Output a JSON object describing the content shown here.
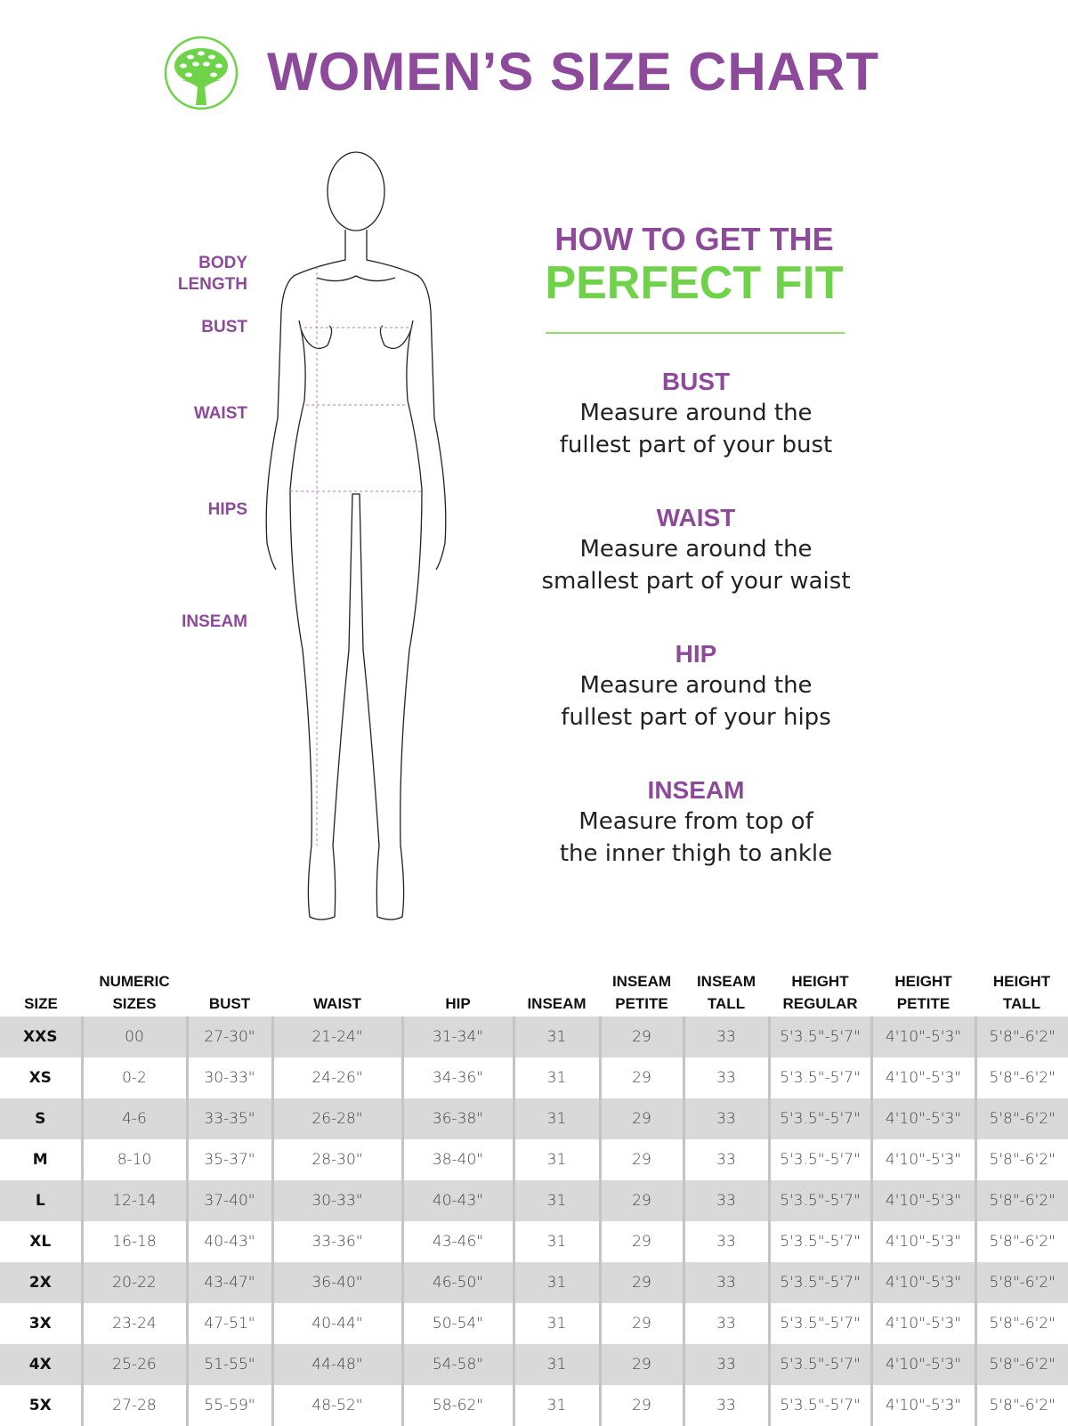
{
  "header": {
    "title": "WOMEN’S SIZE CHART",
    "logo_icon": "tree-icon",
    "logo_color": "#6fd34a",
    "title_color": "#8e4a9a"
  },
  "figure_labels": [
    "BODY LENGTH",
    "BUST",
    "WAIST",
    "HIPS",
    "INSEAM"
  ],
  "howto": {
    "line1": "HOW TO GET THE",
    "line2": "PERFECT FIT",
    "tips": [
      {
        "title": "BUST",
        "line1": "Measure around the",
        "line2": "fullest part of your bust"
      },
      {
        "title": "WAIST",
        "line1": "Measure around the",
        "line2": "smallest part of your waist"
      },
      {
        "title": "HIP",
        "line1": "Measure around the",
        "line2": "fullest part of your hips"
      },
      {
        "title": "INSEAM",
        "line1": "Measure from top of",
        "line2": "the inner thigh to ankle"
      }
    ]
  },
  "table": {
    "headers": [
      [
        "SIZE",
        ""
      ],
      [
        "NUMERIC",
        "SIZES"
      ],
      [
        "BUST",
        ""
      ],
      [
        "WAIST",
        ""
      ],
      [
        "HIP",
        ""
      ],
      [
        "INSEAM",
        ""
      ],
      [
        "INSEAM",
        "PETITE"
      ],
      [
        "INSEAM",
        "TALL"
      ],
      [
        "HEIGHT",
        "REGULAR"
      ],
      [
        "HEIGHT",
        "PETITE"
      ],
      [
        "HEIGHT",
        "TALL"
      ]
    ],
    "rows": [
      [
        "XXS",
        "00",
        "27-30\"",
        "21-24\"",
        "31-34\"",
        "31",
        "29",
        "33",
        "5'3.5\"-5'7\"",
        "4'10\"-5'3\"",
        "5'8\"-6'2\""
      ],
      [
        "XS",
        "0-2",
        "30-33\"",
        "24-26\"",
        "34-36\"",
        "31",
        "29",
        "33",
        "5'3.5\"-5'7\"",
        "4'10\"-5'3\"",
        "5'8\"-6'2\""
      ],
      [
        "S",
        "4-6",
        "33-35\"",
        "26-28\"",
        "36-38\"",
        "31",
        "29",
        "33",
        "5'3.5\"-5'7\"",
        "4'10\"-5'3\"",
        "5'8\"-6'2\""
      ],
      [
        "M",
        "8-10",
        "35-37\"",
        "28-30\"",
        "38-40\"",
        "31",
        "29",
        "33",
        "5'3.5\"-5'7\"",
        "4'10\"-5'3\"",
        "5'8\"-6'2\""
      ],
      [
        "L",
        "12-14",
        "37-40\"",
        "30-33\"",
        "40-43\"",
        "31",
        "29",
        "33",
        "5'3.5\"-5'7\"",
        "4'10\"-5'3\"",
        "5'8\"-6'2\""
      ],
      [
        "XL",
        "16-18",
        "40-43\"",
        "33-36\"",
        "43-46\"",
        "31",
        "29",
        "33",
        "5'3.5\"-5'7\"",
        "4'10\"-5'3\"",
        "5'8\"-6'2\""
      ],
      [
        "2X",
        "20-22",
        "43-47\"",
        "36-40\"",
        "46-50\"",
        "31",
        "29",
        "33",
        "5'3.5\"-5'7\"",
        "4'10\"-5'3\"",
        "5'8\"-6'2\""
      ],
      [
        "3X",
        "23-24",
        "47-51\"",
        "40-44\"",
        "50-54\"",
        "31",
        "29",
        "33",
        "5'3.5\"-5'7\"",
        "4'10\"-5'3\"",
        "5'8\"-6'2\""
      ],
      [
        "4X",
        "25-26",
        "51-55\"",
        "44-48\"",
        "54-58\"",
        "31",
        "29",
        "33",
        "5'3.5\"-5'7\"",
        "4'10\"-5'3\"",
        "5'8\"-6'2\""
      ],
      [
        "5X",
        "27-28",
        "55-59\"",
        "48-52\"",
        "58-62\"",
        "31",
        "29",
        "33",
        "5'3.5\"-5'7\"",
        "4'10\"-5'3\"",
        "5'8\"-6'2\""
      ]
    ]
  }
}
